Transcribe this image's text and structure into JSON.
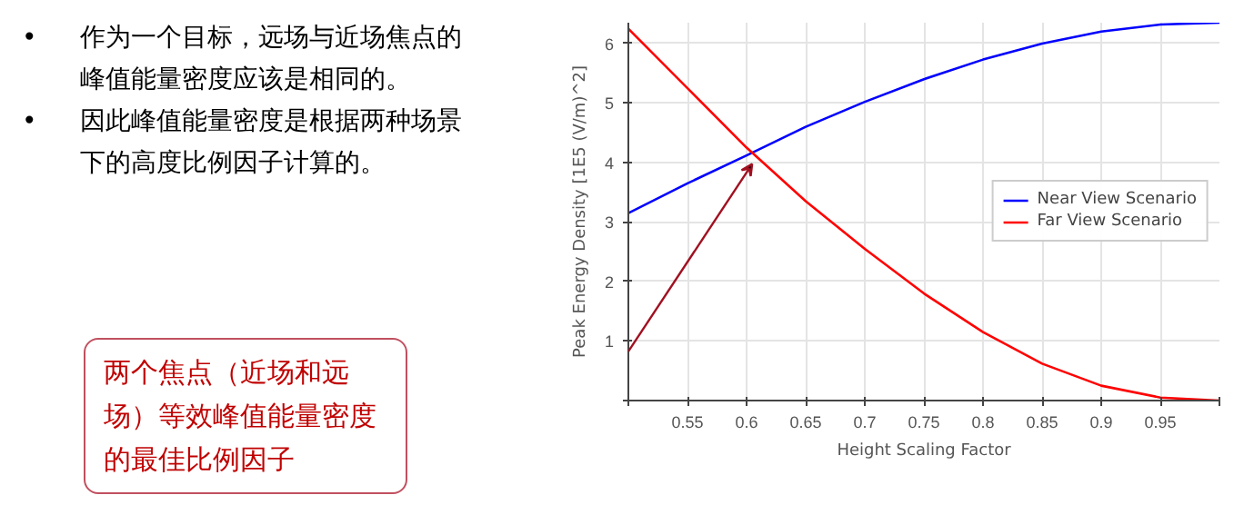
{
  "chart_data": {
    "type": "line",
    "xlabel": "Height Scaling Factor",
    "ylabel": "Peak Energy Density [1E5 (V/m)^2]",
    "annotations": [
      "•\t作为一个目标，远场与近场焦点的峰值能量密度应该是相同的。",
      "•\t因此峰值能量密度是根据两种场景下的高度比例因子计算的。",
      "两个焦点（近场和远场）等效峰值能量密度的最佳比例因子"
    ],
    "x": [
      0.5,
      0.55,
      0.6,
      0.65,
      0.7,
      0.75,
      0.8,
      0.85,
      0.9,
      0.95,
      1.0
    ],
    "series": [
      {
        "name": "Near View Scenario",
        "color": "#0000ff",
        "values": [
          3.15,
          3.65,
          4.12,
          4.6,
          5.02,
          5.4,
          5.73,
          6.0,
          6.2,
          6.32,
          6.35
        ]
      },
      {
        "name": "Far View Scenario",
        "color": "#ff0000",
        "values": [
          6.25,
          5.25,
          4.25,
          3.35,
          2.55,
          1.8,
          1.15,
          0.62,
          0.25,
          0.05,
          0.0
        ]
      }
    ],
    "xlim": [
      0.5,
      1.0
    ],
    "xticks": [
      {
        "value": 0.5,
        "label": null
      },
      0.55,
      0.6,
      0.65,
      0.7,
      0.75,
      0.8,
      0.85,
      0.9,
      0.95,
      {
        "value": 1.0,
        "label": null
      }
    ],
    "ylim": [
      0,
      6.35
    ],
    "yticks": [
      {
        "value": 0,
        "label": null
      },
      1,
      2,
      3,
      4,
      5,
      6
    ],
    "grid": true,
    "legend": "right",
    "marker": "none",
    "line_style": "solid"
  }
}
